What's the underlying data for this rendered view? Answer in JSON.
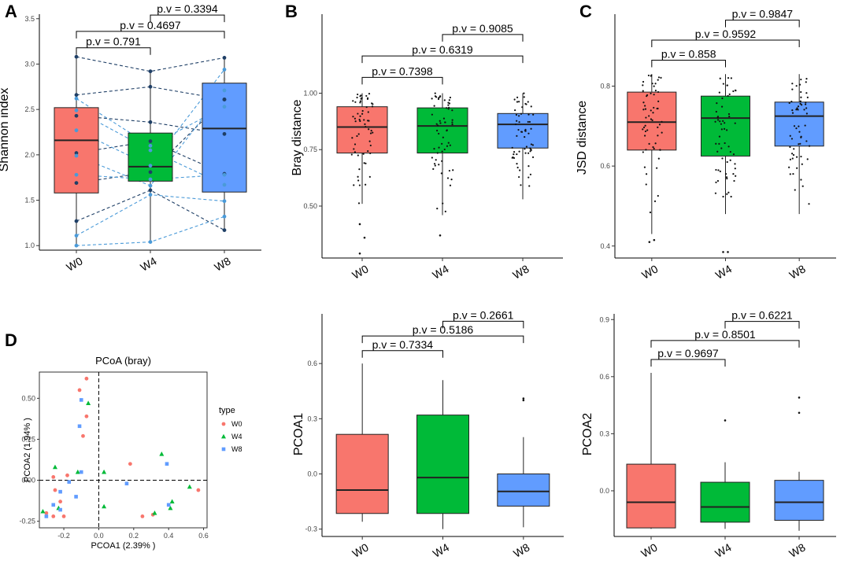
{
  "panel_labels": [
    "A",
    "B",
    "C",
    "D"
  ],
  "colors": {
    "W0": "#F8766D",
    "W4": "#00BA38",
    "W8": "#619CFF",
    "line_dark": "#1f3f66",
    "line_light": "#4a9ad8"
  },
  "chart_data": [
    {
      "id": "A",
      "type": "box",
      "ylabel": "Shannon index",
      "categories": [
        "W0",
        "W4",
        "W8"
      ],
      "ylim": [
        0.95,
        3.55
      ],
      "yticks": [
        1.0,
        1.5,
        2.0,
        2.5,
        3.0,
        3.5
      ],
      "tick_fmt": 1,
      "boxes": [
        {
          "group": "W0",
          "min": 1.0,
          "q1": 1.58,
          "median": 2.16,
          "q3": 2.52,
          "max": 3.08
        },
        {
          "group": "W4",
          "min": 1.04,
          "q1": 1.71,
          "median": 1.87,
          "q3": 2.24,
          "max": 2.92
        },
        {
          "group": "W8",
          "min": 1.17,
          "q1": 1.59,
          "median": 2.29,
          "q3": 2.79,
          "max": 3.07
        }
      ],
      "comparisons": [
        {
          "g1": "W0",
          "g2": "W4",
          "label": "p.v = 0.791",
          "y": 3.18
        },
        {
          "g1": "W0",
          "g2": "W8",
          "label": "p.v = 0.4697",
          "y": 3.36
        },
        {
          "g1": "W4",
          "g2": "W8",
          "label": "p.v = 0.3394",
          "y": 3.54
        }
      ],
      "paired_subjects": [
        {
          "style": "dark",
          "values": [
            3.08,
            2.92,
            3.07
          ]
        },
        {
          "style": "dark",
          "values": [
            2.66,
            2.75,
            2.61
          ]
        },
        {
          "style": "dark",
          "values": [
            2.43,
            2.36,
            2.23
          ]
        },
        {
          "style": "dark",
          "values": [
            2.02,
            2.15,
            1.79
          ]
        },
        {
          "style": "dark",
          "values": [
            1.69,
            1.81,
            2.61
          ]
        },
        {
          "style": "dark",
          "values": [
            1.27,
            1.61,
            1.17
          ]
        },
        {
          "style": "light",
          "values": [
            2.62,
            2.1,
            2.53
          ]
        },
        {
          "style": "light",
          "values": [
            2.49,
            2.05,
            1.67
          ]
        },
        {
          "style": "light",
          "values": [
            2.27,
            1.88,
            2.94
          ]
        },
        {
          "style": "light",
          "values": [
            1.99,
            1.66,
            2.71
          ]
        },
        {
          "style": "light",
          "values": [
            1.78,
            1.73,
            1.78
          ]
        },
        {
          "style": "light",
          "values": [
            1.11,
            1.56,
            1.49
          ]
        },
        {
          "style": "light",
          "values": [
            1.0,
            1.04,
            1.32
          ]
        }
      ]
    },
    {
      "id": "B",
      "type": "box",
      "ylabel": "Bray distance",
      "categories": [
        "W0",
        "W4",
        "W8"
      ],
      "ylim": [
        0.27,
        1.35
      ],
      "yticks": [
        0.5,
        0.75,
        1.0
      ],
      "tick_fmt": 2,
      "boxes": [
        {
          "group": "W0",
          "min": 0.51,
          "q1": 0.735,
          "median": 0.85,
          "q3": 0.94,
          "max": 1.0
        },
        {
          "group": "W4",
          "min": 0.46,
          "q1": 0.735,
          "median": 0.855,
          "q3": 0.935,
          "max": 1.0
        },
        {
          "group": "W8",
          "min": 0.53,
          "q1": 0.757,
          "median": 0.862,
          "q3": 0.91,
          "max": 1.0
        }
      ],
      "outliers": {
        "W0": [
          0.29,
          0.36,
          0.42
        ],
        "W4": [
          0.37
        ]
      },
      "comparisons": [
        {
          "g1": "W0",
          "g2": "W4",
          "label": "p.v = 0.7398",
          "y": 1.07
        },
        {
          "g1": "W0",
          "g2": "W8",
          "label": "p.v = 0.6319",
          "y": 1.165
        },
        {
          "g1": "W4",
          "g2": "W8",
          "label": "p.v = 0.9085",
          "y": 1.26
        }
      ],
      "jitter_points_per_group": 60
    },
    {
      "id": "C",
      "type": "box",
      "ylabel": "JSD distance",
      "categories": [
        "W0",
        "W4",
        "W8"
      ],
      "ylim": [
        0.37,
        0.98
      ],
      "yticks": [
        0.4,
        0.6,
        0.8
      ],
      "tick_fmt": 1,
      "boxes": [
        {
          "group": "W0",
          "min": 0.43,
          "q1": 0.64,
          "median": 0.71,
          "q3": 0.785,
          "max": 0.83
        },
        {
          "group": "W4",
          "min": 0.48,
          "q1": 0.625,
          "median": 0.72,
          "q3": 0.775,
          "max": 0.83
        },
        {
          "group": "W8",
          "min": 0.48,
          "q1": 0.65,
          "median": 0.725,
          "q3": 0.76,
          "max": 0.83
        }
      ],
      "outliers": {
        "W0": [
          0.41,
          0.415
        ],
        "W4": [
          0.385,
          0.385
        ]
      },
      "comparisons": [
        {
          "g1": "W0",
          "g2": "W4",
          "label": "p.v = 0.858",
          "y": 0.865
        },
        {
          "g1": "W0",
          "g2": "W8",
          "label": "p.v = 0.9592",
          "y": 0.915
        },
        {
          "g1": "W4",
          "g2": "W8",
          "label": "p.v = 0.9847",
          "y": 0.965
        }
      ],
      "jitter_points_per_group": 60
    },
    {
      "id": "D",
      "type": "scatter",
      "title": "PCoA (bray)",
      "xlabel": "PCOA1 (2.39% )",
      "ylabel": "PCOA2 (1.94% )",
      "xlim": [
        -0.34,
        0.62
      ],
      "ylim": [
        -0.29,
        0.66
      ],
      "xticks": [
        -0.2,
        0.0,
        0.2,
        0.4,
        0.6
      ],
      "yticks": [
        -0.25,
        0.0,
        0.25,
        0.5
      ],
      "legend": {
        "title": "type",
        "entries": [
          "W0",
          "W4",
          "W8"
        ],
        "position": "right"
      },
      "series": [
        {
          "name": "W0",
          "marker": "circle",
          "points": [
            [
              -0.07,
              0.62
            ],
            [
              -0.11,
              0.55
            ],
            [
              -0.07,
              0.39
            ],
            [
              -0.09,
              0.27
            ],
            [
              -0.18,
              0.03
            ],
            [
              -0.26,
              0.02
            ],
            [
              -0.25,
              -0.06
            ],
            [
              -0.22,
              -0.13
            ],
            [
              -0.3,
              -0.2
            ],
            [
              -0.26,
              -0.22
            ],
            [
              -0.2,
              -0.22
            ],
            [
              0.18,
              0.1
            ],
            [
              0.25,
              -0.22
            ],
            [
              0.31,
              -0.21
            ],
            [
              0.57,
              -0.06
            ]
          ]
        },
        {
          "name": "W4",
          "marker": "triangle",
          "points": [
            [
              -0.06,
              0.47
            ],
            [
              -0.25,
              0.08
            ],
            [
              -0.12,
              0.05
            ],
            [
              0.03,
              0.05
            ],
            [
              -0.32,
              -0.19
            ],
            [
              -0.23,
              -0.17
            ],
            [
              0.03,
              -0.16
            ],
            [
              0.32,
              -0.2
            ],
            [
              0.36,
              0.16
            ],
            [
              0.42,
              -0.13
            ],
            [
              0.41,
              -0.17
            ],
            [
              0.52,
              -0.04
            ]
          ]
        },
        {
          "name": "W8",
          "marker": "square",
          "points": [
            [
              -0.1,
              0.49
            ],
            [
              -0.11,
              0.33
            ],
            [
              -0.1,
              0.05
            ],
            [
              -0.17,
              -0.01
            ],
            [
              -0.26,
              -0.15
            ],
            [
              -0.22,
              -0.07
            ],
            [
              -0.13,
              -0.1
            ],
            [
              -0.22,
              -0.18
            ],
            [
              -0.3,
              -0.22
            ],
            [
              0.16,
              -0.02
            ],
            [
              0.39,
              0.1
            ],
            [
              0.4,
              -0.15
            ]
          ]
        }
      ]
    },
    {
      "id": "E",
      "type": "box",
      "ylabel": "PCOA1",
      "categories": [
        "W0",
        "W4",
        "W8"
      ],
      "ylim": [
        -0.34,
        0.87
      ],
      "yticks": [
        -0.3,
        0.0,
        0.3,
        0.6
      ],
      "tick_fmt": 1,
      "boxes": [
        {
          "group": "W0",
          "min": -0.26,
          "q1": -0.215,
          "median": -0.088,
          "q3": 0.215,
          "max": 0.6
        },
        {
          "group": "W4",
          "min": -0.3,
          "q1": -0.215,
          "median": -0.02,
          "q3": 0.32,
          "max": 0.51
        },
        {
          "group": "W8",
          "min": -0.29,
          "q1": -0.175,
          "median": -0.095,
          "q3": 0.0,
          "max": 0.2
        }
      ],
      "outliers": {
        "W8": [
          0.4,
          0.41
        ]
      },
      "comparisons": [
        {
          "g1": "W0",
          "g2": "W4",
          "label": "p.v = 0.7334",
          "y": 0.67
        },
        {
          "g1": "W0",
          "g2": "W8",
          "label": "p.v = 0.5186",
          "y": 0.75
        },
        {
          "g1": "W4",
          "g2": "W8",
          "label": "p.v = 0.2661",
          "y": 0.83
        }
      ]
    },
    {
      "id": "F",
      "type": "box",
      "ylabel": "PCOA2",
      "categories": [
        "W0",
        "W4",
        "W8"
      ],
      "ylim": [
        -0.24,
        0.93
      ],
      "yticks": [
        0.0,
        0.3,
        0.6,
        0.9
      ],
      "tick_fmt": 1,
      "boxes": [
        {
          "group": "W0",
          "min": -0.2,
          "q1": -0.195,
          "median": -0.06,
          "q3": 0.14,
          "max": 0.62
        },
        {
          "group": "W4",
          "min": -0.2,
          "q1": -0.165,
          "median": -0.085,
          "q3": 0.045,
          "max": 0.15
        },
        {
          "group": "W8",
          "min": -0.21,
          "q1": -0.155,
          "median": -0.06,
          "q3": 0.055,
          "max": 0.1
        }
      ],
      "outliers": {
        "W4": [
          0.37
        ],
        "W8": [
          0.41,
          0.49
        ]
      },
      "comparisons": [
        {
          "g1": "W0",
          "g2": "W4",
          "label": "p.v = 0.9697",
          "y": 0.69
        },
        {
          "g1": "W0",
          "g2": "W8",
          "label": "p.v = 0.8501",
          "y": 0.79
        },
        {
          "g1": "W4",
          "g2": "W8",
          "label": "p.v = 0.6221",
          "y": 0.89
        }
      ]
    }
  ]
}
